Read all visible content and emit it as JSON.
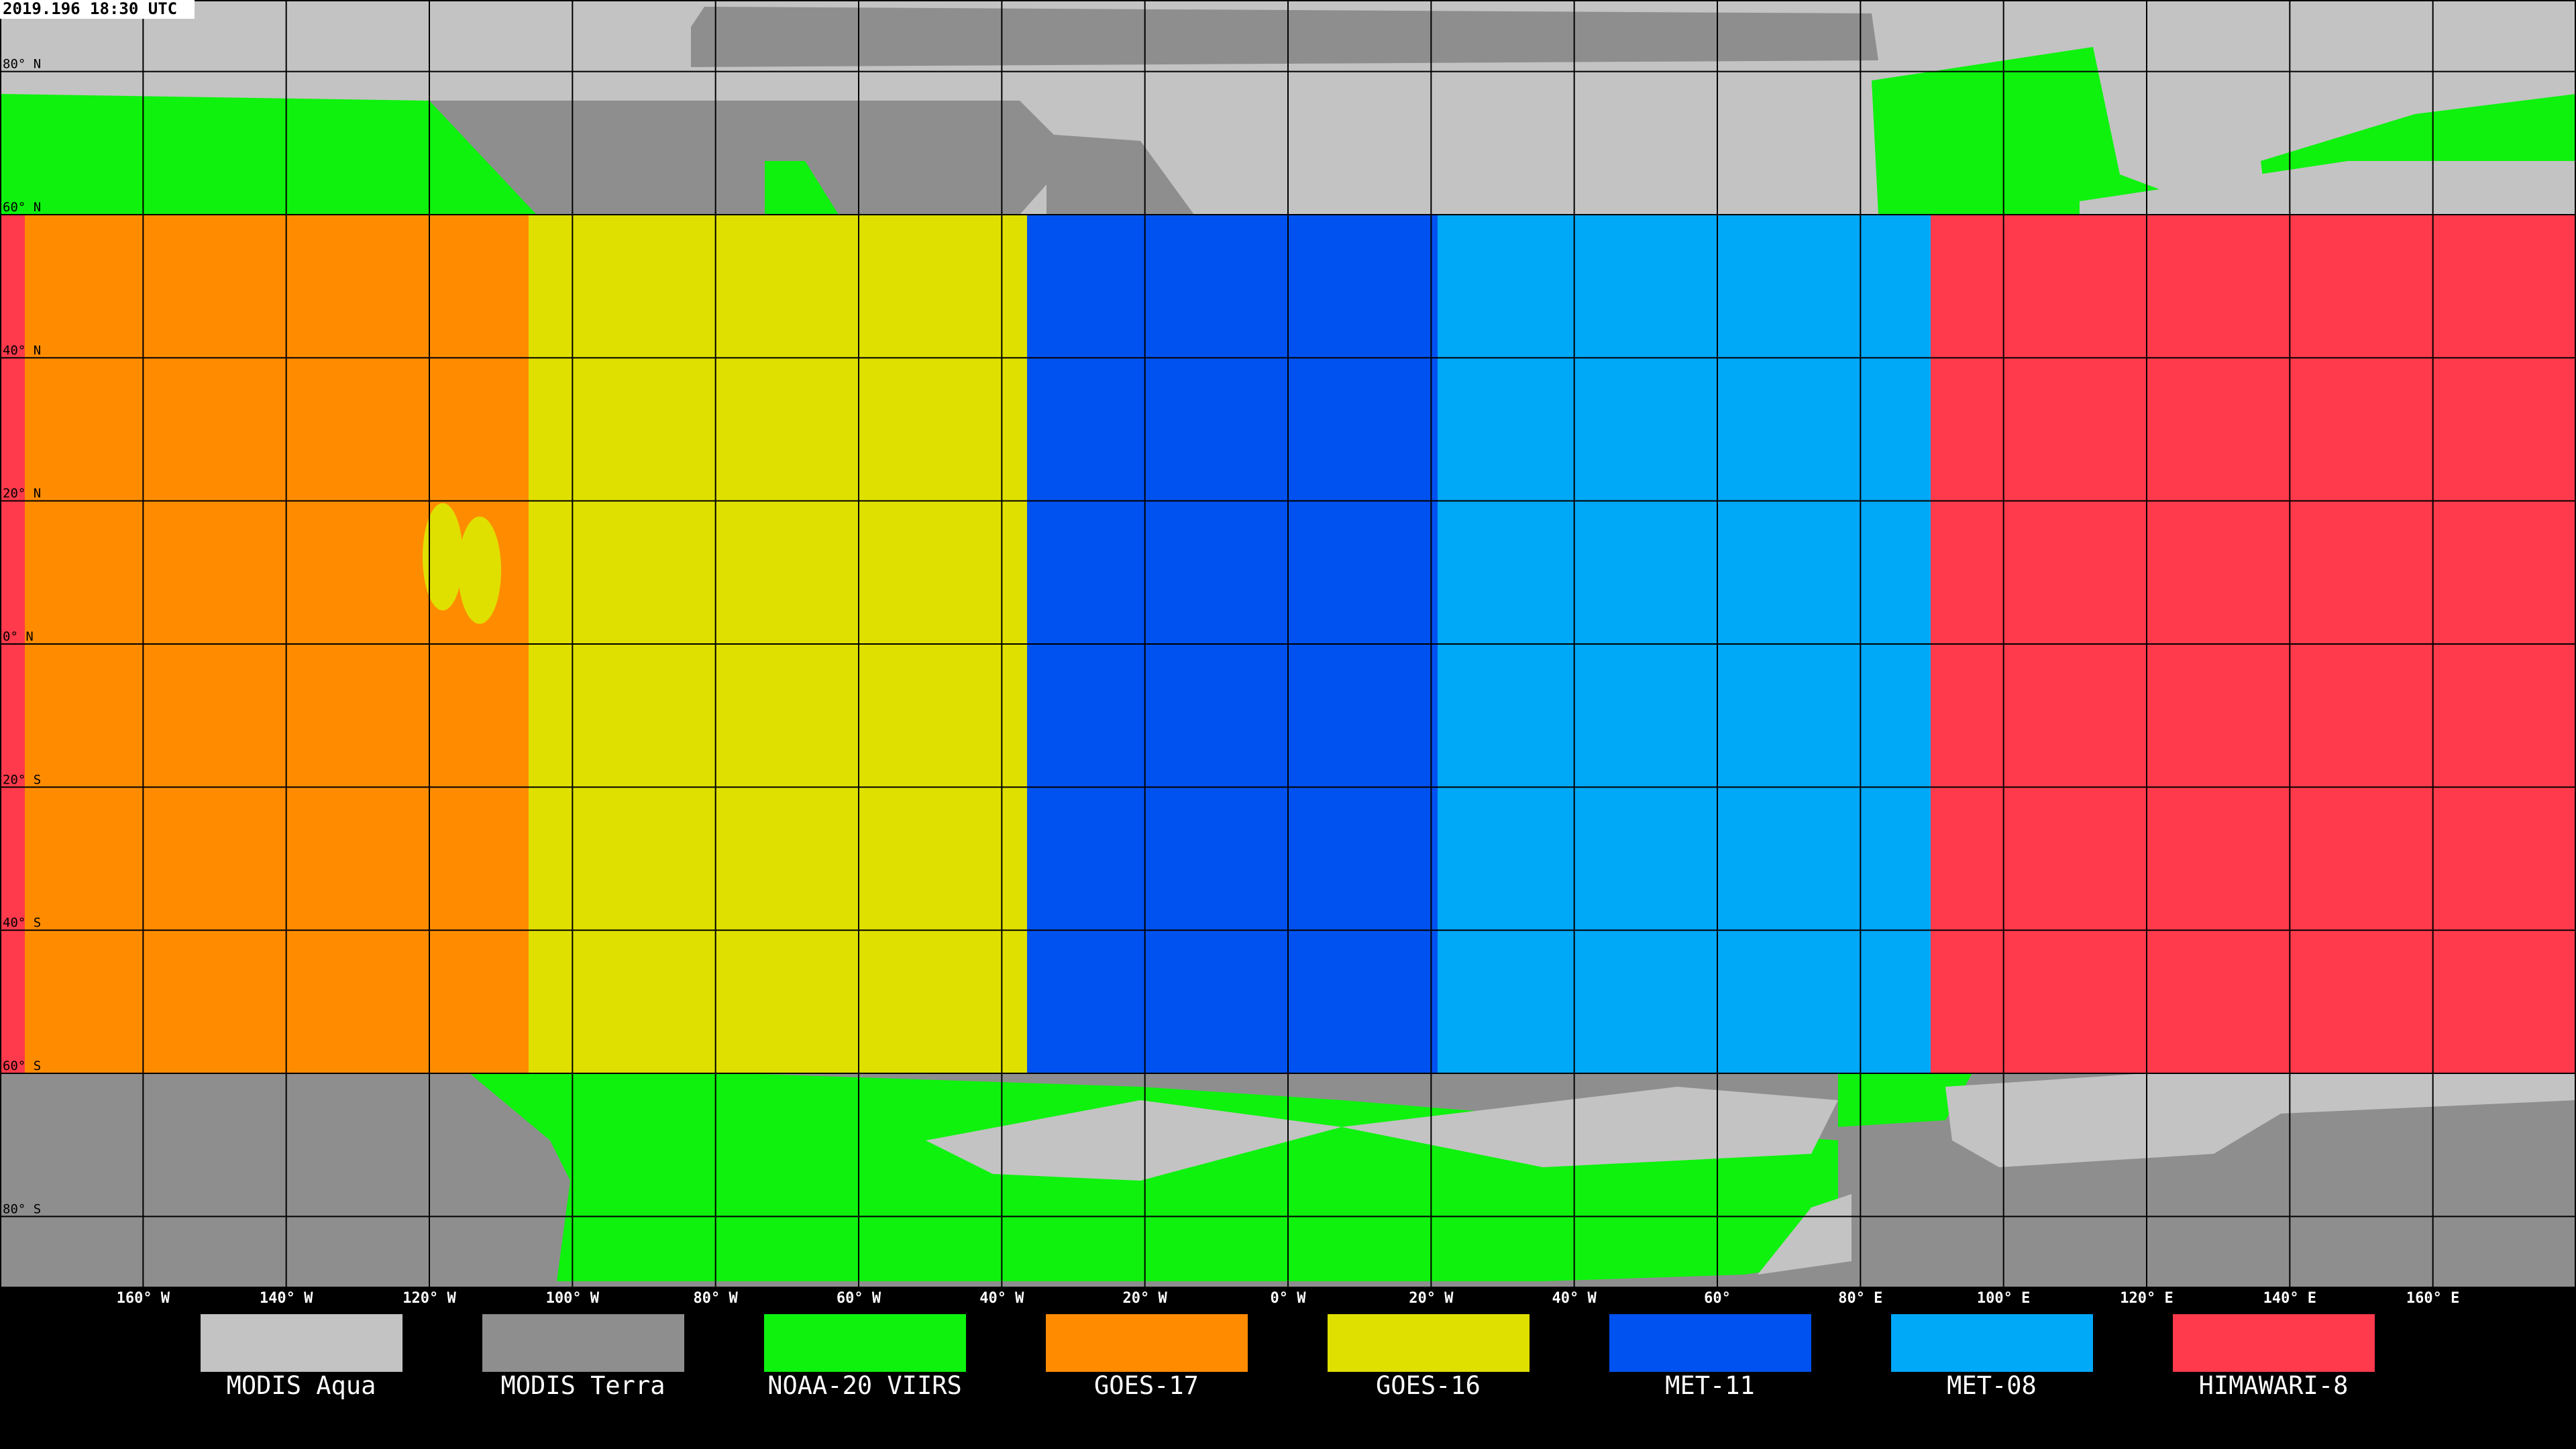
{
  "timestamp": "2019.196 18:30 UTC",
  "latitude_labels": [
    "80° N",
    "60° N",
    "40° N",
    "20° N",
    "0° N",
    "20° S",
    "40° S",
    "60° S",
    "80° S"
  ],
  "longitude_labels": [
    "160° W",
    "140° W",
    "120° W",
    "100° W",
    "80° W",
    "60° W",
    "40° W",
    "20° W",
    "0° W",
    "20° W",
    "40° W",
    "60°",
    "80° E",
    "100° E",
    "120° E",
    "140° E",
    "160° E"
  ],
  "legend": [
    {
      "name": "MODIS Aqua",
      "color": "#c3c3c3"
    },
    {
      "name": "MODIS Terra",
      "color": "#8e8e8e"
    },
    {
      "name": "NOAA-20 VIIRS",
      "color": "#0ef20e"
    },
    {
      "name": "GOES-17",
      "color": "#ff8c00"
    },
    {
      "name": "GOES-16",
      "color": "#e0e000"
    },
    {
      "name": "MET-11",
      "color": "#0052f0"
    },
    {
      "name": "MET-08",
      "color": "#00a8f8"
    },
    {
      "name": "HIMAWARI-8",
      "color": "#ff3a4c"
    }
  ]
}
